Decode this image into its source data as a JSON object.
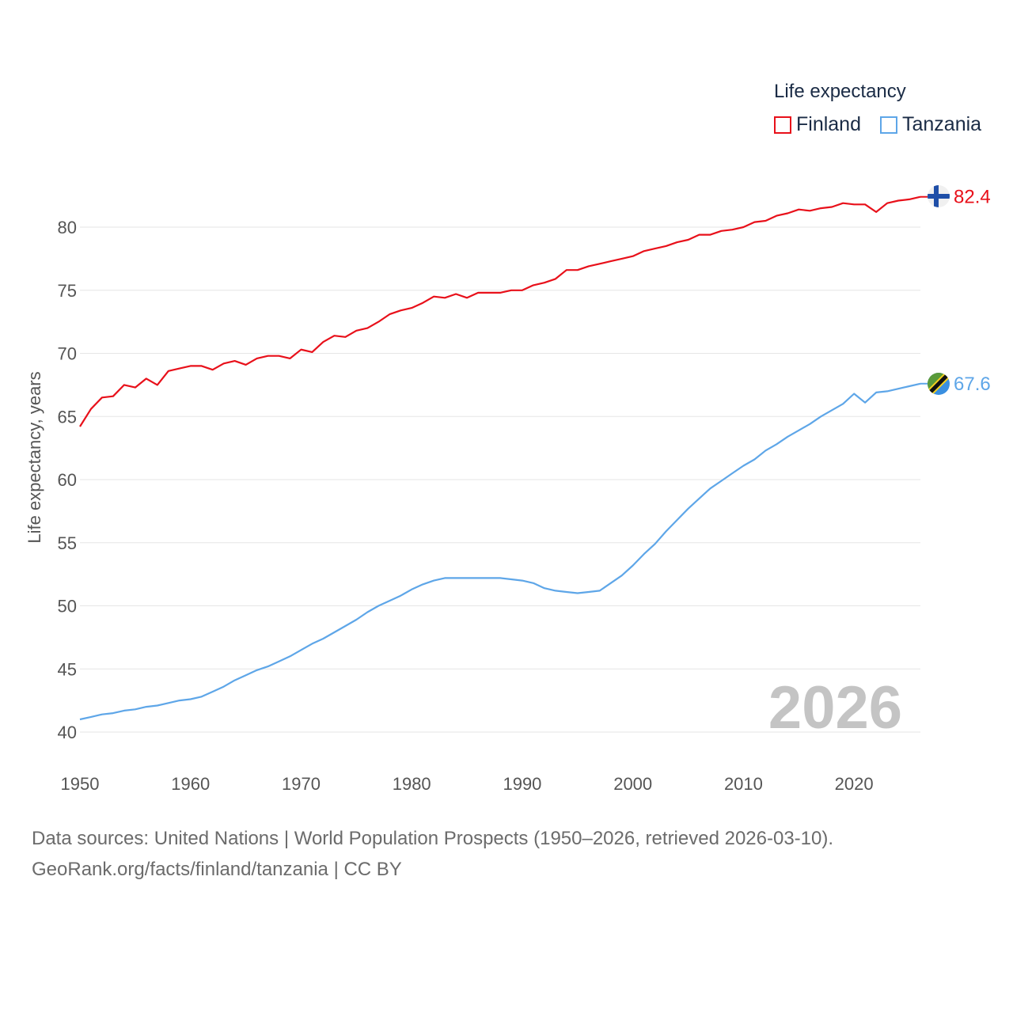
{
  "legend": {
    "title": "Life expectancy",
    "items": [
      {
        "label": "Finland",
        "color": "#e8101a"
      },
      {
        "label": "Tanzania",
        "color": "#5ea6e8"
      }
    ]
  },
  "source": {
    "line1": "Data sources: United Nations | World Population Prospects (1950–2026, retrieved 2026-03-10).",
    "line2": "GeoRank.org/facts/finland/tanzania | CC BY"
  },
  "chart_data": {
    "type": "line",
    "title": "Life expectancy",
    "xlabel": "",
    "ylabel": "Life expectancy, years",
    "year_label": "2026",
    "xlim": [
      1950,
      2026
    ],
    "ylim": [
      40,
      83
    ],
    "x_ticks": [
      1950,
      1960,
      1970,
      1980,
      1990,
      2000,
      2010,
      2020
    ],
    "y_ticks": [
      40,
      45,
      50,
      55,
      60,
      65,
      70,
      75,
      80
    ],
    "grid": true,
    "x": [
      1950,
      1951,
      1952,
      1953,
      1954,
      1955,
      1956,
      1957,
      1958,
      1959,
      1960,
      1961,
      1962,
      1963,
      1964,
      1965,
      1966,
      1967,
      1968,
      1969,
      1970,
      1971,
      1972,
      1973,
      1974,
      1975,
      1976,
      1977,
      1978,
      1979,
      1980,
      1981,
      1982,
      1983,
      1984,
      1985,
      1986,
      1987,
      1988,
      1989,
      1990,
      1991,
      1992,
      1993,
      1994,
      1995,
      1996,
      1997,
      1998,
      1999,
      2000,
      2001,
      2002,
      2003,
      2004,
      2005,
      2006,
      2007,
      2008,
      2009,
      2010,
      2011,
      2012,
      2013,
      2014,
      2015,
      2016,
      2017,
      2018,
      2019,
      2020,
      2021,
      2022,
      2023,
      2024,
      2025,
      2026
    ],
    "series": [
      {
        "name": "Finland",
        "color": "#e8101a",
        "end_label": "82.4",
        "values": [
          64.2,
          65.6,
          66.5,
          66.6,
          67.5,
          67.3,
          68.0,
          67.5,
          68.6,
          68.8,
          69.0,
          69.0,
          68.7,
          69.2,
          69.4,
          69.1,
          69.6,
          69.8,
          69.8,
          69.6,
          70.3,
          70.1,
          70.9,
          71.4,
          71.3,
          71.8,
          72.0,
          72.5,
          73.1,
          73.4,
          73.6,
          74.0,
          74.5,
          74.4,
          74.7,
          74.4,
          74.8,
          74.8,
          74.8,
          75.0,
          75.0,
          75.4,
          75.6,
          75.9,
          76.6,
          76.6,
          76.9,
          77.1,
          77.3,
          77.5,
          77.7,
          78.1,
          78.3,
          78.5,
          78.8,
          79.0,
          79.4,
          79.4,
          79.7,
          79.8,
          80.0,
          80.4,
          80.5,
          80.9,
          81.1,
          81.4,
          81.3,
          81.5,
          81.6,
          81.9,
          81.8,
          81.8,
          81.2,
          81.9,
          82.1,
          82.2,
          82.4
        ]
      },
      {
        "name": "Tanzania",
        "color": "#5ea6e8",
        "end_label": "67.6",
        "values": [
          41.0,
          41.2,
          41.4,
          41.5,
          41.7,
          41.8,
          42.0,
          42.1,
          42.3,
          42.5,
          42.6,
          42.8,
          43.2,
          43.6,
          44.1,
          44.5,
          44.9,
          45.2,
          45.6,
          46.0,
          46.5,
          47.0,
          47.4,
          47.9,
          48.4,
          48.9,
          49.5,
          50.0,
          50.4,
          50.8,
          51.3,
          51.7,
          52.0,
          52.2,
          52.2,
          52.2,
          52.2,
          52.2,
          52.2,
          52.1,
          52.0,
          51.8,
          51.4,
          51.2,
          51.1,
          51.0,
          51.1,
          51.2,
          51.8,
          52.4,
          53.2,
          54.1,
          54.9,
          55.9,
          56.8,
          57.7,
          58.5,
          59.3,
          59.9,
          60.5,
          61.1,
          61.6,
          62.3,
          62.8,
          63.4,
          63.9,
          64.4,
          65.0,
          65.5,
          66.0,
          66.8,
          66.1,
          66.9,
          67.0,
          67.2,
          67.4,
          67.6
        ]
      }
    ]
  }
}
